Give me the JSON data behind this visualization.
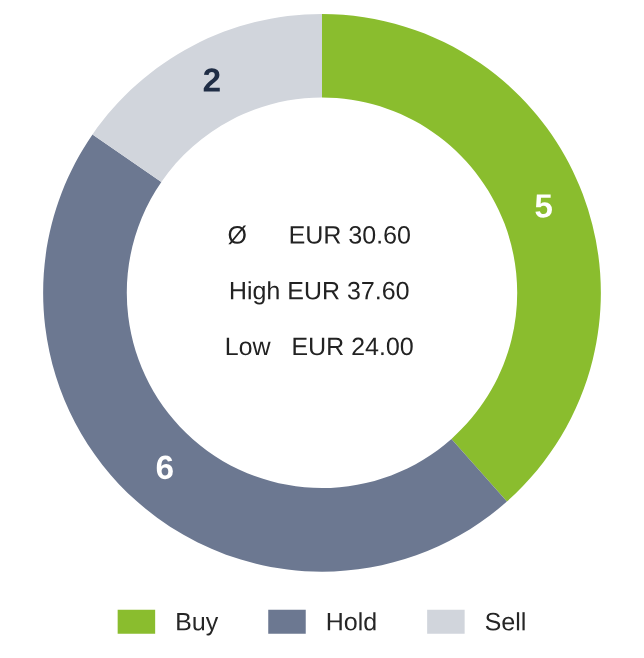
{
  "chart_data": {
    "type": "donut",
    "categories": [
      "Buy",
      "Hold",
      "Sell"
    ],
    "values": [
      5,
      6,
      2
    ],
    "colors": [
      "#8abd2e",
      "#6c7891",
      "#d1d5dc"
    ],
    "data_labels": true,
    "legend": "bottom",
    "annotations": [
      "Ø      EUR 30.60",
      "High EUR 37.60",
      "Low   EUR 24.00"
    ]
  }
}
